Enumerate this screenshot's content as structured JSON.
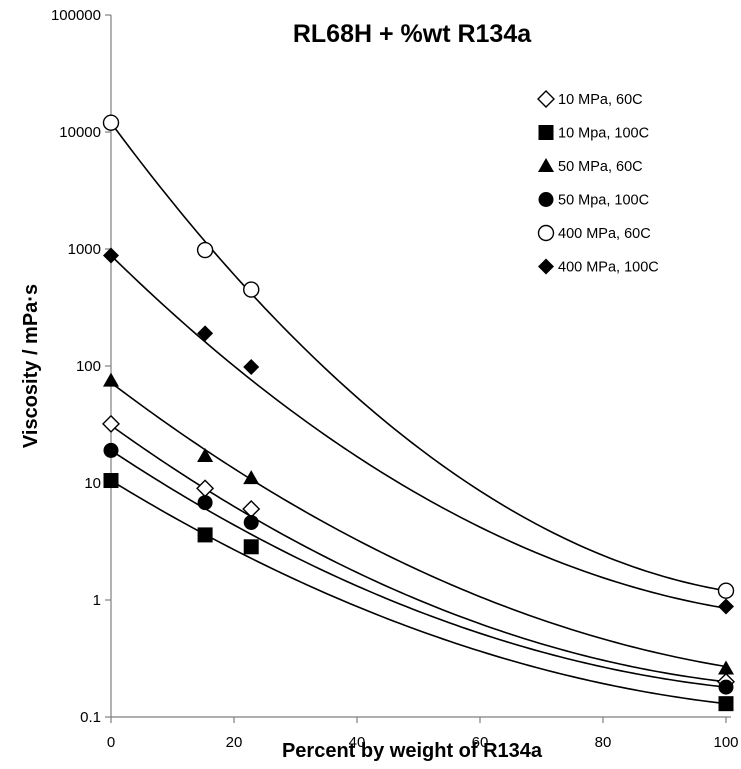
{
  "chart_data": {
    "type": "scatter",
    "title": "RL68H + %wt R134a",
    "xlabel": "Percent by weight of R134a",
    "ylabel": "Viscosity / mPa·s",
    "xlim": [
      0,
      100
    ],
    "ylim": [
      0.1,
      100000
    ],
    "yscale": "log",
    "x_ticks": [
      0,
      20,
      40,
      60,
      80,
      100
    ],
    "x_tick_labels": [
      "0",
      "20",
      "40",
      "60",
      "80",
      "100"
    ],
    "y_ticks": [
      0.1,
      1,
      10,
      100,
      1000,
      10000,
      100000
    ],
    "y_tick_labels": [
      "0.1",
      "1",
      "10",
      "100",
      "1000",
      "10000",
      "100000"
    ],
    "grid": false,
    "legend_position": "top-right",
    "series": [
      {
        "name": "10 MPa, 60C",
        "marker": "diamond-open",
        "color": "#000000",
        "x": [
          0,
          15.3,
          22.8,
          100
        ],
        "y": [
          32,
          9,
          6,
          0.2
        ]
      },
      {
        "name": "10 Mpa, 100C",
        "marker": "square-filled",
        "color": "#000000",
        "x": [
          0,
          15.3,
          22.8,
          100
        ],
        "y": [
          10.5,
          3.6,
          2.85,
          0.13
        ]
      },
      {
        "name": "50 MPa, 60C",
        "marker": "triangle-filled",
        "color": "#000000",
        "x": [
          0,
          15.3,
          22.8,
          100
        ],
        "y": [
          75,
          17,
          11,
          0.26
        ]
      },
      {
        "name": "50 Mpa, 100C",
        "marker": "circle-filled",
        "color": "#000000",
        "x": [
          0,
          15.3,
          22.8,
          100
        ],
        "y": [
          19,
          6.8,
          4.6,
          0.18
        ]
      },
      {
        "name": "400 MPa, 60C",
        "marker": "circle-open",
        "color": "#000000",
        "x": [
          0,
          15.3,
          22.8,
          100
        ],
        "y": [
          12000,
          980,
          450,
          1.2
        ]
      },
      {
        "name": "400 MPa, 100C",
        "marker": "diamond-filled",
        "color": "#000000",
        "x": [
          0,
          15.3,
          22.8,
          100
        ],
        "y": [
          880,
          190,
          98,
          0.88
        ]
      }
    ],
    "trendlines": [
      {
        "series": "400 MPa, 60C",
        "y": [
          12000,
          20,
          1.2
        ]
      },
      {
        "series": "400 MPa, 100C",
        "y": [
          880,
          8,
          0.85
        ]
      },
      {
        "series": "50 MPa, 60C",
        "y": [
          72,
          1.8,
          0.27
        ]
      },
      {
        "series": "10 MPa, 60C",
        "y": [
          31,
          1.0,
          0.2
        ]
      },
      {
        "series": "50 Mpa, 100C",
        "y": [
          19,
          0.8,
          0.18
        ]
      },
      {
        "series": "10 Mpa, 100C",
        "y": [
          10.5,
          0.55,
          0.13
        ]
      }
    ]
  }
}
